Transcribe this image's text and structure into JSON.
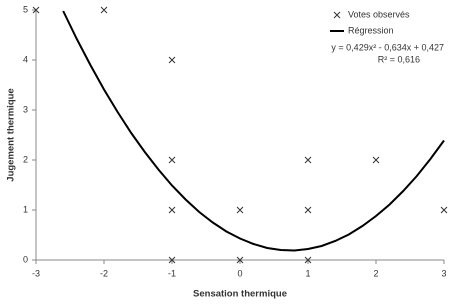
{
  "chart_data": {
    "type": "scatter",
    "xlabel": "Sensation thermique",
    "ylabel": "Jugement thermique",
    "xlim": [
      -3,
      3
    ],
    "ylim": [
      0,
      5
    ],
    "xticks": [
      -3,
      -2,
      -1,
      0,
      1,
      2,
      3
    ],
    "yticks": [
      0,
      1,
      2,
      3,
      4,
      5
    ],
    "legend": "upper right",
    "annotations": [
      "y = 0,429x² - 0,634x + 0,427",
      "R² = 0,616"
    ],
    "series": [
      {
        "name": "Votes observés",
        "type": "scatter",
        "color": "#333333",
        "x": [
          -3,
          -2,
          -1,
          -1,
          -1,
          -1,
          0,
          0,
          1,
          1,
          1,
          2,
          3
        ],
        "values": [
          5,
          5,
          4,
          2,
          1,
          0,
          1,
          0,
          2,
          1,
          0,
          2,
          1
        ]
      },
      {
        "name": "Régression",
        "type": "line",
        "color": "#000000",
        "x": [
          -2.6,
          -2.4,
          -2.2,
          -2.0,
          -1.8,
          -1.6,
          -1.4,
          -1.2,
          -1.0,
          -0.8,
          -0.6,
          -0.4,
          -0.2,
          0,
          0.2,
          0.4,
          0.6,
          0.8,
          1.0,
          1.2,
          1.4,
          1.6,
          1.8,
          2.0,
          2.2,
          2.4,
          2.6,
          2.8,
          3.0
        ],
        "values": [
          4.98,
          4.42,
          3.9,
          3.41,
          2.96,
          2.54,
          2.16,
          1.81,
          1.49,
          1.21,
          0.96,
          0.75,
          0.57,
          0.43,
          0.32,
          0.24,
          0.2,
          0.19,
          0.22,
          0.28,
          0.38,
          0.51,
          0.68,
          0.88,
          1.11,
          1.38,
          1.68,
          2.02,
          2.39
        ]
      }
    ]
  }
}
